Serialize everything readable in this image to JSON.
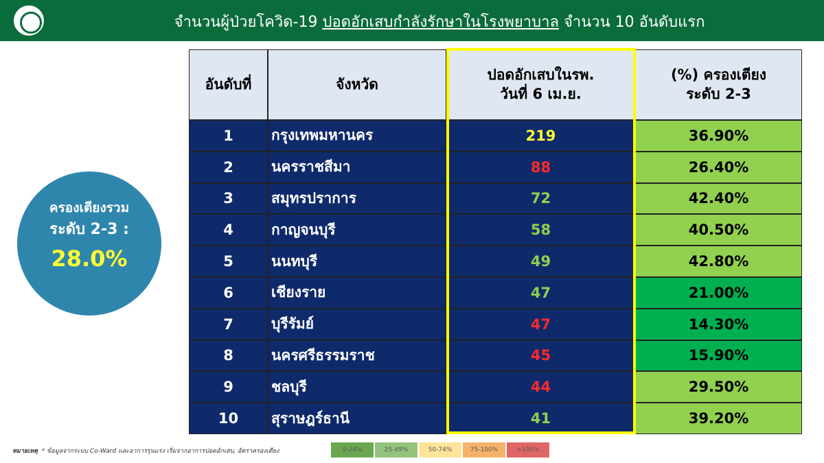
{
  "header": {
    "title_before": "จำนวนผู้ป่วยโควิด-19 ",
    "title_underlined": "ปอดอักเสบกำลังรักษาในโรงพยาบาล",
    "title_after": " จำนวน 10 อันดับแรก"
  },
  "summary": {
    "line1": "ครองเตียงรวม",
    "line2": "ระดับ 2-3 :",
    "value": "28.0%"
  },
  "table": {
    "headers": [
      "อันดับที่",
      "จังหวัด",
      "ปอดอักเสบในรพ.\nวันที่ 6 เม.ย.",
      "(%) ครองเตียง\nระดับ 2-3"
    ],
    "rows": [
      {
        "rank": 1,
        "province": "กรุงเทพมหานคร",
        "cases": 219,
        "cases_color": "#ffff33",
        "occupancy": "36.90%",
        "occupancy_color": "#92d050"
      },
      {
        "rank": 2,
        "province": "นครราชสีมา",
        "cases": 88,
        "cases_color": "#ff2a2a",
        "occupancy": "26.40%",
        "occupancy_color": "#92d050"
      },
      {
        "rank": 3,
        "province": "สมุทรปราการ",
        "cases": 72,
        "cases_color": "#8fd14f",
        "occupancy": "42.40%",
        "occupancy_color": "#92d050"
      },
      {
        "rank": 4,
        "province": "กาญจนบุรี",
        "cases": 58,
        "cases_color": "#8fd14f",
        "occupancy": "40.50%",
        "occupancy_color": "#92d050"
      },
      {
        "rank": 5,
        "province": "นนทบุรี",
        "cases": 49,
        "cases_color": "#8fd14f",
        "occupancy": "42.80%",
        "occupancy_color": "#92d050"
      },
      {
        "rank": 6,
        "province": "เชียงราย",
        "cases": 47,
        "cases_color": "#8fd14f",
        "occupancy": "21.00%",
        "occupancy_color": "#00b050"
      },
      {
        "rank": 7,
        "province": "บุรีรัมย์",
        "cases": 47,
        "cases_color": "#ff2a2a",
        "occupancy": "14.30%",
        "occupancy_color": "#00b050"
      },
      {
        "rank": 8,
        "province": "นครศรีธรรมราช",
        "cases": 45,
        "cases_color": "#ff2a2a",
        "occupancy": "15.90%",
        "occupancy_color": "#00b050"
      },
      {
        "rank": 9,
        "province": "ชลบุรี",
        "cases": 44,
        "cases_color": "#ff2a2a",
        "occupancy": "29.50%",
        "occupancy_color": "#92d050"
      },
      {
        "rank": 10,
        "province": "สุราษฎร์ธานี",
        "cases": 41,
        "cases_color": "#8fd14f",
        "occupancy": "39.20%",
        "occupancy_color": "#92d050"
      }
    ]
  },
  "footnote": {
    "label": "หมายเหตุ",
    "text": "* ข้อมูลจากระบบ Co-Ward และอาการรุนแรง เริ่มจากอาการปอดอักเสบ, อัตราครองเตียง"
  },
  "legend": [
    {
      "label": "0-24%",
      "color": "#6aa84f"
    },
    {
      "label": "25-49%",
      "color": "#93c47d"
    },
    {
      "label": "50-74%",
      "color": "#ffe599"
    },
    {
      "label": "75-100%",
      "color": "#f6b26b"
    },
    {
      "label": ">100%",
      "color": "#e06666"
    }
  ]
}
